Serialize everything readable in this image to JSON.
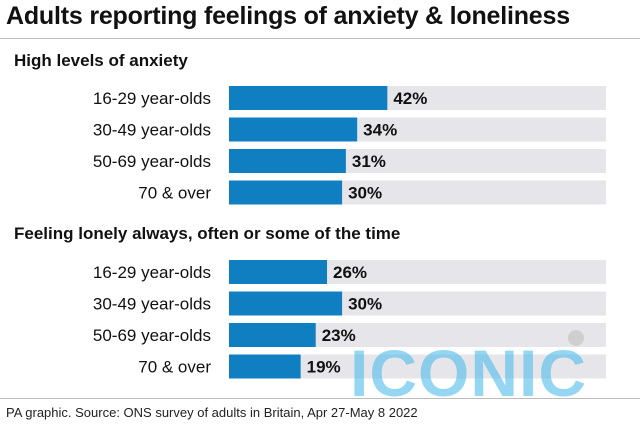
{
  "title": "Adults reporting feelings of anxiety & loneliness",
  "source": "PA graphic. Source: ONS survey of adults in Britain, Apr 27-May 8 2022",
  "watermark": "ICONIC",
  "colors": {
    "bar": "#0f7fc2",
    "track": "#e6e6ea"
  },
  "chart_data": [
    {
      "type": "bar",
      "title": "High levels of anxiety",
      "categories": [
        "16-29 year-olds",
        "30-49 year-olds",
        "50-69 year-olds",
        "70 & over"
      ],
      "values": [
        42,
        34,
        31,
        30
      ],
      "value_labels": [
        "42%",
        "34%",
        "31%",
        "30%"
      ],
      "unit": "%",
      "xlim": [
        0,
        100
      ],
      "orientation": "horizontal",
      "grid": false
    },
    {
      "type": "bar",
      "title": "Feeling lonely always, often or some of the time",
      "categories": [
        "16-29 year-olds",
        "30-49 year-olds",
        "50-69 year-olds",
        "70 & over"
      ],
      "values": [
        26,
        30,
        23,
        19
      ],
      "value_labels": [
        "26%",
        "30%",
        "23%",
        "19%"
      ],
      "unit": "%",
      "xlim": [
        0,
        100
      ],
      "orientation": "horizontal",
      "grid": false
    }
  ]
}
